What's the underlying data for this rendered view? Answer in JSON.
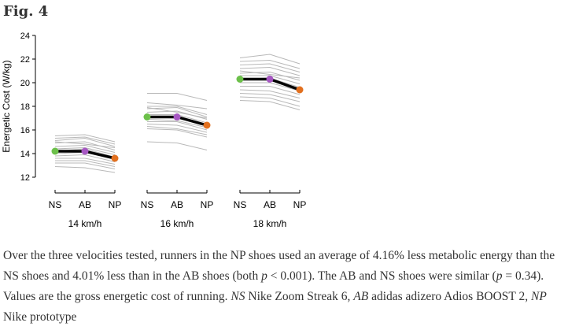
{
  "figure": {
    "label": "Fig. 4"
  },
  "caption": {
    "html_parts": [
      {
        "t": "Over the three velocities tested, runners in the NP shoes used an average of 4.16% less metabolic energy than the NS shoes and 4.01% less than in the AB shoes (both "
      },
      {
        "t": "p",
        "i": true
      },
      {
        "t": " < 0.001). The AB and NS shoes were similar ("
      },
      {
        "t": "p",
        "i": true
      },
      {
        "t": " = 0.34). Values are the gross energetic cost of running. "
      },
      {
        "t": "NS",
        "i": true
      },
      {
        "t": " Nike Zoom Streak 6, "
      },
      {
        "t": "AB",
        "i": true
      },
      {
        "t": " adidas adizero Adios BOOST 2, "
      },
      {
        "t": "NP",
        "i": true
      },
      {
        "t": " Nike prototype"
      }
    ]
  },
  "chart_data": {
    "type": "line",
    "ylabel": "Energetic Cost (W/kg)",
    "ylim": [
      12,
      24
    ],
    "yticks": [
      12,
      14,
      16,
      18,
      20,
      22,
      24
    ],
    "shoes": [
      "NS",
      "AB",
      "NP"
    ],
    "groups": [
      {
        "label": "14 km/h",
        "mean": [
          14.2,
          14.2,
          13.6
        ],
        "runners": [
          [
            15.5,
            15.6,
            15.0
          ],
          [
            15.3,
            15.4,
            14.8
          ],
          [
            15.1,
            15.3,
            14.6
          ],
          [
            14.9,
            15.0,
            14.3
          ],
          [
            14.6,
            14.7,
            14.1
          ],
          [
            14.4,
            14.5,
            13.9
          ],
          [
            14.2,
            14.4,
            13.7
          ],
          [
            14.0,
            14.1,
            13.5
          ],
          [
            13.8,
            13.9,
            13.3
          ],
          [
            13.6,
            13.6,
            13.1
          ],
          [
            13.4,
            13.4,
            12.9
          ],
          [
            13.2,
            13.2,
            12.7
          ],
          [
            12.9,
            12.8,
            12.4
          ],
          [
            15.0,
            14.8,
            14.5
          ]
        ]
      },
      {
        "label": "16 km/h",
        "mean": [
          17.1,
          17.1,
          16.4
        ],
        "runners": [
          [
            19.1,
            19.1,
            18.5
          ],
          [
            18.3,
            18.1,
            17.8
          ],
          [
            18.0,
            18.0,
            17.3
          ],
          [
            17.8,
            17.9,
            17.1
          ],
          [
            17.5,
            17.6,
            16.9
          ],
          [
            17.3,
            17.3,
            16.6
          ],
          [
            17.1,
            17.0,
            16.5
          ],
          [
            16.9,
            16.8,
            16.2
          ],
          [
            16.7,
            16.7,
            16.0
          ],
          [
            16.5,
            16.4,
            15.8
          ],
          [
            16.3,
            16.1,
            15.6
          ],
          [
            16.1,
            16.0,
            15.4
          ],
          [
            15.0,
            14.9,
            14.3
          ],
          [
            17.9,
            17.5,
            17.0
          ]
        ]
      },
      {
        "label": "18 km/h",
        "mean": [
          20.3,
          20.3,
          19.4
        ],
        "runners": [
          [
            22.1,
            22.4,
            21.6
          ],
          [
            21.8,
            21.9,
            21.2
          ],
          [
            21.5,
            21.6,
            20.9
          ],
          [
            21.2,
            21.3,
            20.6
          ],
          [
            20.8,
            20.9,
            20.2
          ],
          [
            20.6,
            20.6,
            19.9
          ],
          [
            20.3,
            20.4,
            19.6
          ],
          [
            20.0,
            20.0,
            19.3
          ],
          [
            19.7,
            19.7,
            19.0
          ],
          [
            19.4,
            19.3,
            18.7
          ],
          [
            19.1,
            19.0,
            18.4
          ],
          [
            18.8,
            18.7,
            18.0
          ],
          [
            18.5,
            18.4,
            17.7
          ],
          [
            21.0,
            20.7,
            20.4
          ]
        ]
      }
    ],
    "colors": {
      "runner_line": "#b8b8b8",
      "mean_line": "#000000",
      "NS": "#6cc04a",
      "AB": "#a657c2",
      "NP": "#e2701f"
    },
    "grid": false
  }
}
